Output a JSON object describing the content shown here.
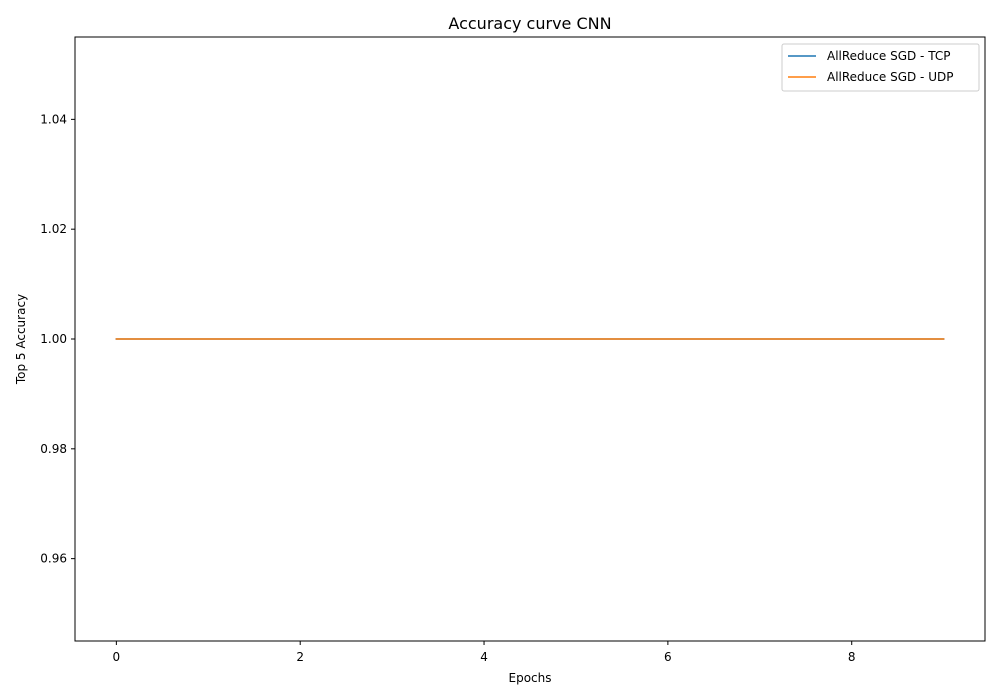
{
  "chart_data": {
    "type": "line",
    "title": "Accuracy curve CNN",
    "xlabel": "Epochs",
    "ylabel": "Top 5 Accuracy",
    "xlim": [
      -0.45,
      9.45
    ],
    "ylim": [
      0.945,
      1.055
    ],
    "xticks": [
      0,
      2,
      4,
      6,
      8
    ],
    "xtick_labels": [
      "0",
      "2",
      "4",
      "6",
      "8"
    ],
    "yticks": [
      0.96,
      0.98,
      1.0,
      1.02,
      1.04
    ],
    "ytick_labels": [
      "0.96",
      "0.98",
      "1.00",
      "1.02",
      "1.04"
    ],
    "grid": false,
    "legend_position": "top-right",
    "x": [
      0,
      1,
      2,
      3,
      4,
      5,
      6,
      7,
      8,
      9
    ],
    "series": [
      {
        "name": "AllReduce SGD - TCP",
        "color": "#1f77b4",
        "values": [
          1.0,
          1.0,
          1.0,
          1.0,
          1.0,
          1.0,
          1.0,
          1.0,
          1.0,
          1.0
        ]
      },
      {
        "name": "AllReduce SGD - UDP",
        "color": "#ff7f0e",
        "values": [
          1.0,
          1.0,
          1.0,
          1.0,
          1.0,
          1.0,
          1.0,
          1.0,
          1.0,
          1.0
        ]
      }
    ]
  }
}
